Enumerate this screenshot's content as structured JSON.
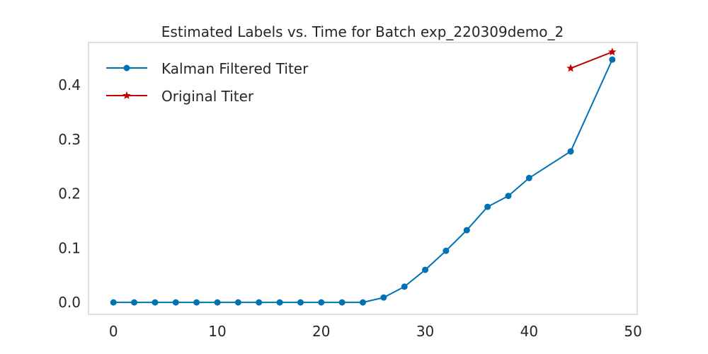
{
  "chart_data": {
    "type": "line",
    "title": "Estimated Labels vs. Time for Batch exp_220309demo_2",
    "xlabel": "",
    "ylabel": "",
    "xlim": [
      -2.4,
      50.4
    ],
    "ylim": [
      -0.022,
      0.4785
    ],
    "xticks": [
      0,
      10,
      20,
      30,
      40,
      50
    ],
    "xtick_labels": [
      "0",
      "10",
      "20",
      "30",
      "40",
      "50"
    ],
    "yticks": [
      0.0,
      0.1,
      0.2,
      0.3,
      0.4
    ],
    "ytick_labels": [
      "0.0",
      "0.1",
      "0.2",
      "0.3",
      "0.4"
    ],
    "grid": false,
    "legend_position": "top-left",
    "series": [
      {
        "name": "Kalman Filtered Titer",
        "color": "#0072B2",
        "marker": "circle",
        "x": [
          0,
          2,
          4,
          6,
          8,
          10,
          12,
          14,
          16,
          18,
          20,
          22,
          24,
          26,
          28,
          30,
          32,
          34,
          36,
          38,
          40,
          44,
          48
        ],
        "y": [
          0.0,
          0.0,
          0.0,
          0.0,
          0.0,
          0.0,
          0.0,
          0.0,
          0.0,
          0.0,
          0.0,
          0.0,
          0.0,
          0.009,
          0.029,
          0.06,
          0.095,
          0.133,
          0.176,
          0.196,
          0.229,
          0.278,
          0.447
        ]
      },
      {
        "name": "Original Titer",
        "color": "#C00000",
        "marker": "star",
        "x": [
          44,
          48
        ],
        "y": [
          0.431,
          0.461
        ]
      }
    ]
  }
}
